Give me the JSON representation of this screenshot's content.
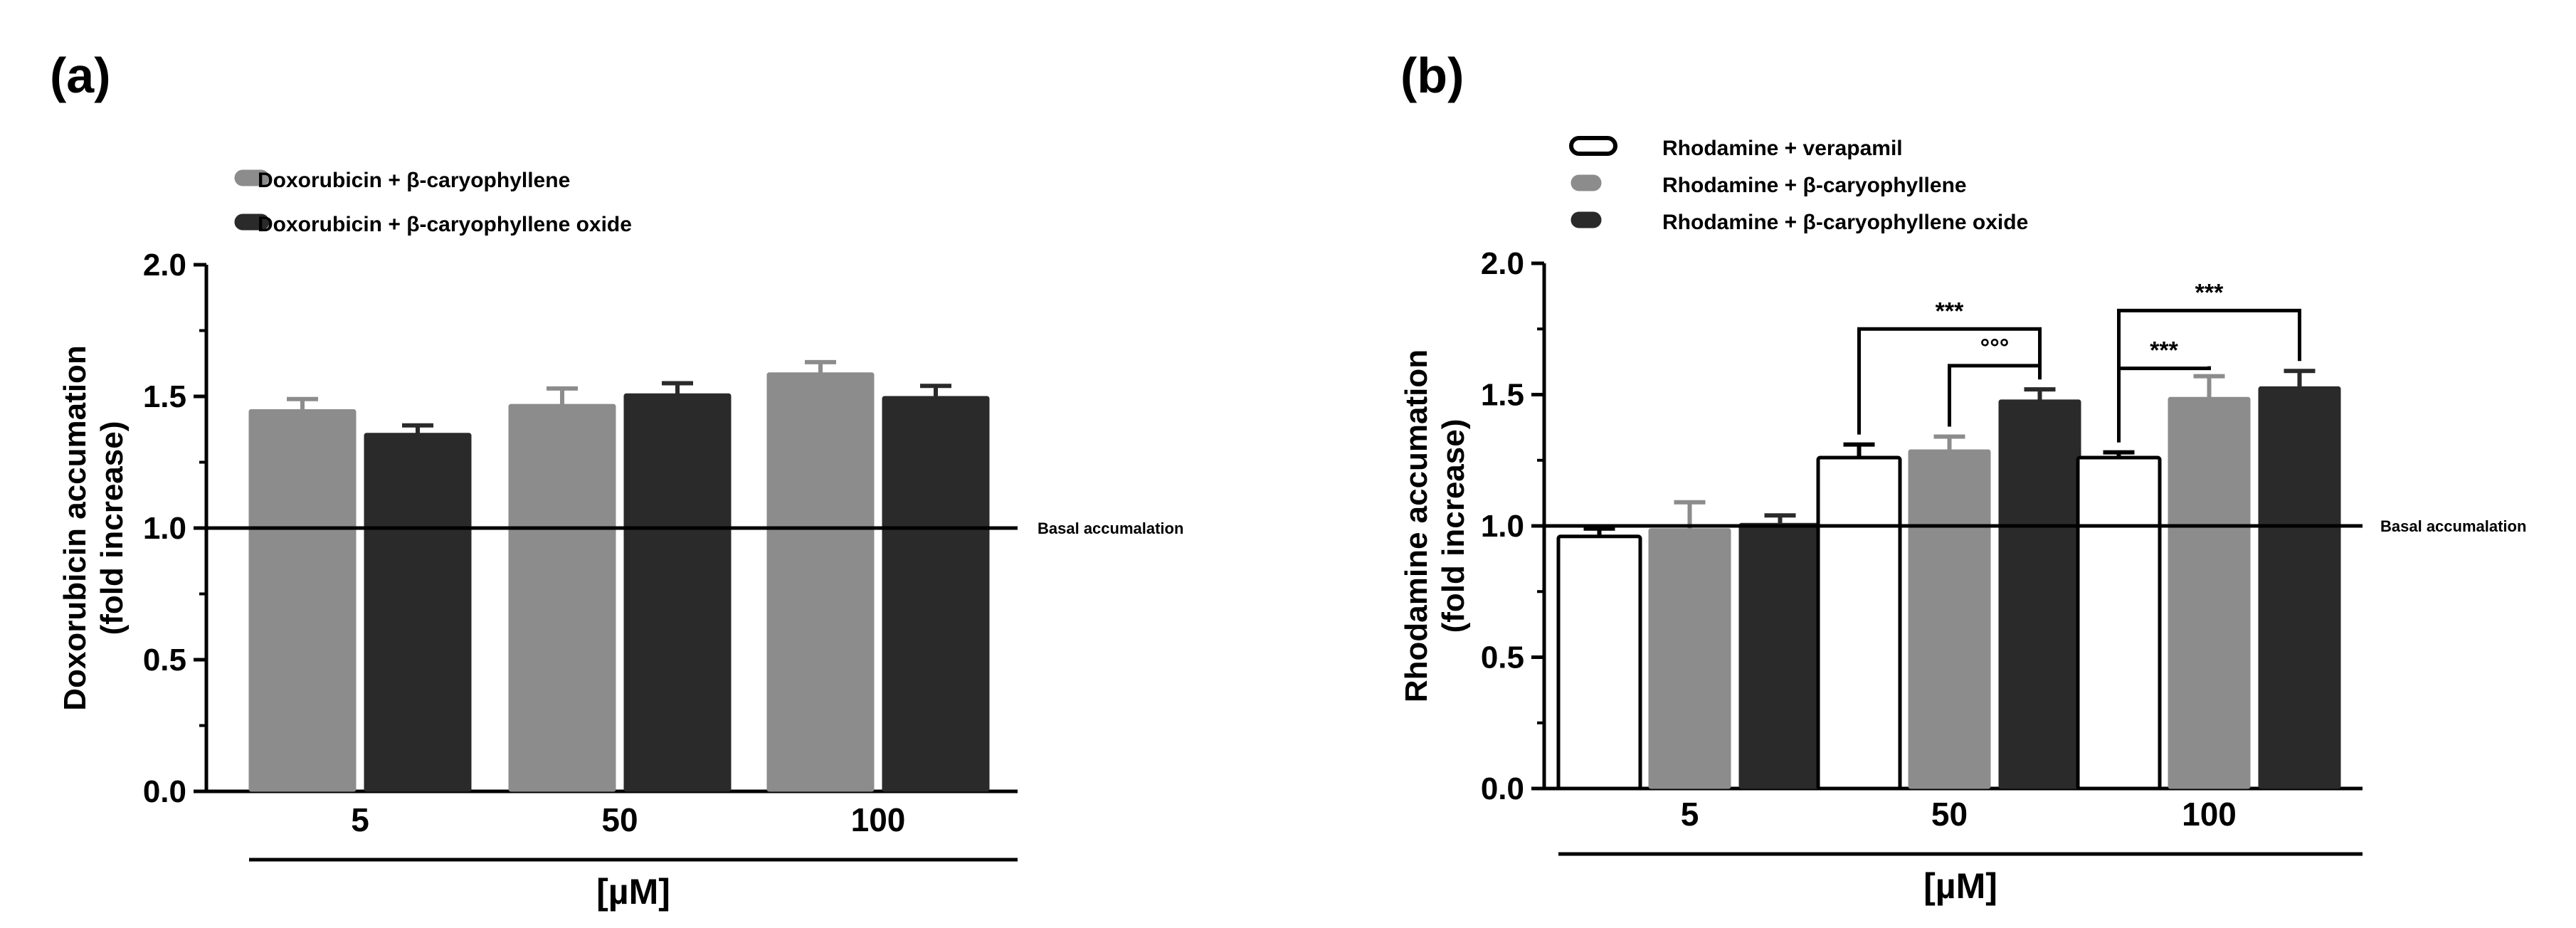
{
  "chart_data": [
    {
      "panel": "(a)",
      "type": "bar",
      "categories": [
        "5",
        "50",
        "100"
      ],
      "xlabel": "[µM]",
      "ylabel": [
        "Doxorubicin accumation",
        "(fold increase)"
      ],
      "ylim": [
        0,
        2.0
      ],
      "yticks": [
        "0.0",
        "0.5",
        "1.0",
        "1.5",
        "2.0"
      ],
      "reference_line": {
        "value": 1.0,
        "label": "Basal accumalation"
      },
      "series": [
        {
          "name": "Doxorubicin + β-caryophyllene",
          "color": "#8c8c8c",
          "values": [
            1.45,
            1.47,
            1.59
          ],
          "errors": [
            0.04,
            0.06,
            0.04
          ]
        },
        {
          "name": "Doxorubicin + β-caryophyllene oxide",
          "color": "#2a2a2a",
          "values": [
            1.36,
            1.51,
            1.5
          ],
          "errors": [
            0.03,
            0.04,
            0.04
          ]
        }
      ],
      "annotations": []
    },
    {
      "panel": "(b)",
      "type": "bar",
      "categories": [
        "5",
        "50",
        "100"
      ],
      "xlabel": "[µM]",
      "ylabel": [
        "Rhodamine accumation",
        "(fold increase)"
      ],
      "ylim": [
        0,
        2.0
      ],
      "yticks": [
        "0.0",
        "0.5",
        "1.0",
        "1.5",
        "2.0"
      ],
      "reference_line": {
        "value": 1.0,
        "label": "Basal accumalation"
      },
      "series": [
        {
          "name": "Rhodamine + verapamil",
          "color": "#ffffff",
          "values": [
            0.96,
            1.26,
            1.26
          ],
          "errors": [
            0.03,
            0.05,
            0.02
          ]
        },
        {
          "name": "Rhodamine + β-caryophyllene",
          "color": "#8c8c8c",
          "values": [
            0.99,
            1.29,
            1.49
          ],
          "errors": [
            0.1,
            0.05,
            0.08
          ]
        },
        {
          "name": "Rhodamine + β-caryophyllene oxide",
          "color": "#2a2a2a",
          "values": [
            1.01,
            1.48,
            1.53
          ],
          "errors": [
            0.03,
            0.04,
            0.06
          ]
        }
      ],
      "annotations": [
        {
          "group": 1,
          "from": 0,
          "to": 2,
          "text": "***",
          "level": 1.75
        },
        {
          "group": 1,
          "from": 1,
          "to": 2,
          "text": "°°°",
          "level": 1.61
        },
        {
          "group": 2,
          "from": 0,
          "to": 2,
          "text": "***",
          "level": 1.82
        },
        {
          "group": 2,
          "from": 0,
          "to": 1,
          "text": "***",
          "level": 1.6
        }
      ]
    }
  ]
}
